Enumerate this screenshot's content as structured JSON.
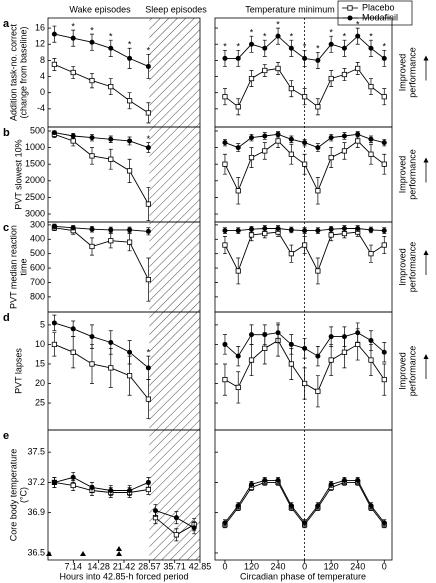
{
  "figure": {
    "headers": {
      "wake": "Wake episodes",
      "sleep": "Sleep episodes",
      "temp_min": "Temperature minimum"
    },
    "legend": [
      "Placebo",
      "Modafinil"
    ],
    "x_axes": {
      "hours": {
        "label": "Hours into 42.85-h forced period",
        "xlim": [
          0,
          42.85
        ],
        "xticks": [
          7.14,
          14.28,
          21.42,
          28.57,
          35.71,
          42.85
        ],
        "sleep_span": [
          28.57,
          42.85
        ]
      },
      "phase": {
        "label": "Circadian phase of temperature",
        "xlim": [
          -45,
          755
        ],
        "xticks": [
          0,
          120,
          240,
          {
            "value": 360,
            "label": "0"
          },
          {
            "value": 480,
            "label": "120"
          },
          {
            "value": 600,
            "label": "240"
          },
          {
            "value": 720,
            "label": "0"
          }
        ],
        "temp_min_x": 360
      }
    }
  },
  "chart_data": [
    {
      "type": "line",
      "label": "a",
      "ylabel": [
        "Addition task-no. correct",
        "(change from baseline)"
      ],
      "annotation": [
        "Improved",
        "performance"
      ],
      "ylim": [
        -8.5,
        18.5
      ],
      "yticks": [
        -4,
        0,
        4,
        8,
        12,
        16
      ],
      "y_inverted": false,
      "sections": {
        "wake": {
          "x": [
            1.8,
            7.1,
            12.4,
            17.7,
            23,
            28.3
          ],
          "sig": [
            null,
            "*",
            "*",
            "*",
            "*",
            "*"
          ],
          "series": [
            {
              "values": [
                7,
                5,
                3,
                1.5,
                -2,
                -5
              ],
              "err": [
                1.5,
                1.5,
                1.8,
                2,
                2,
                2.5
              ]
            },
            {
              "values": [
                14.5,
                13.5,
                12.5,
                11,
                8.5,
                6.5
              ],
              "err": [
                2,
                2,
                2,
                2,
                2.5,
                3
              ]
            }
          ]
        },
        "circadian": {
          "x": [
            0,
            60,
            120,
            180,
            240,
            300,
            360,
            420,
            480,
            540,
            600,
            660,
            720
          ],
          "sig": [
            "*",
            "*",
            "*",
            "*",
            "*",
            "*",
            "*",
            "*",
            "*",
            "*",
            "*",
            "*",
            "*"
          ],
          "series": [
            {
              "values": [
                -1,
                -3.5,
                3.5,
                5.5,
                6,
                1,
                -1,
                -3.5,
                3.5,
                4.5,
                6,
                1.5,
                -1
              ],
              "err": [
                2,
                2,
                2,
                1.5,
                1.5,
                2,
                2,
                2,
                2,
                1.5,
                1.5,
                2,
                2
              ]
            },
            {
              "values": [
                8.5,
                8.5,
                12,
                11,
                14,
                11,
                8.5,
                8,
                12,
                11,
                14,
                11,
                8.5
              ],
              "err": [
                2,
                2,
                2,
                2,
                2,
                2,
                2,
                2,
                2,
                2,
                2,
                2,
                2
              ]
            }
          ]
        }
      }
    },
    {
      "type": "line",
      "label": "b",
      "ylabel": [
        "PVT slowest 10%"
      ],
      "annotation": [
        "Improved",
        "performance"
      ],
      "ylim": [
        380,
        3240
      ],
      "yticks": [
        500,
        1000,
        1500,
        2000,
        2500,
        3000
      ],
      "y_inverted": true,
      "sections": {
        "wake": {
          "x": [
            1.8,
            7.1,
            12.4,
            17.7,
            23,
            28.3
          ],
          "sig": [
            null,
            null,
            null,
            null,
            null,
            "*"
          ],
          "series": [
            {
              "values": [
                600,
                800,
                1250,
                1350,
                1700,
                2700
              ],
              "err": [
                100,
                150,
                250,
                300,
                350,
                500
              ]
            },
            {
              "values": [
                550,
                650,
                700,
                750,
                800,
                1000
              ],
              "err": [
                50,
                80,
                100,
                100,
                120,
                150
              ]
            }
          ]
        },
        "circadian": {
          "x": [
            0,
            60,
            120,
            180,
            240,
            300,
            360,
            420,
            480,
            540,
            600,
            660,
            720
          ],
          "series": [
            {
              "values": [
                1500,
                2300,
                1300,
                1100,
                800,
                1200,
                1500,
                2300,
                1300,
                1100,
                800,
                1200,
                1500
              ],
              "err": [
                300,
                400,
                300,
                250,
                200,
                300,
                300,
                400,
                300,
                250,
                200,
                300,
                300
              ]
            },
            {
              "values": [
                850,
                1000,
                700,
                650,
                600,
                750,
                850,
                1000,
                700,
                650,
                600,
                750,
                850
              ],
              "err": [
                100,
                120,
                100,
                100,
                80,
                100,
                100,
                120,
                100,
                100,
                80,
                100,
                100
              ]
            }
          ]
        }
      }
    },
    {
      "type": "line",
      "label": "c",
      "ylabel": [
        "PVT median reaction",
        "time"
      ],
      "annotation": [
        "Improved",
        "performance"
      ],
      "ylim": [
        280,
        905
      ],
      "yticks": [
        300,
        400,
        500,
        600,
        700,
        800
      ],
      "y_inverted": true,
      "sections": {
        "wake": {
          "x": [
            1.8,
            7.1,
            12.4,
            17.7,
            23,
            28.3
          ],
          "series": [
            {
              "values": [
                320,
                340,
                450,
                410,
                420,
                680
              ],
              "err": [
                20,
                25,
                60,
                50,
                60,
                150
              ]
            },
            {
              "values": [
                310,
                320,
                330,
                335,
                335,
                345
              ],
              "err": [
                15,
                15,
                20,
                20,
                20,
                25
              ]
            }
          ]
        },
        "circadian": {
          "x": [
            0,
            60,
            120,
            180,
            240,
            300,
            360,
            420,
            480,
            540,
            600,
            660,
            720
          ],
          "series": [
            {
              "values": [
                440,
                620,
                370,
                360,
                350,
                500,
                440,
                620,
                370,
                360,
                350,
                500,
                440
              ],
              "err": [
                60,
                90,
                40,
                30,
                30,
                60,
                60,
                90,
                40,
                30,
                30,
                60,
                60
              ]
            },
            {
              "values": [
                340,
                340,
                330,
                325,
                325,
                335,
                340,
                340,
                330,
                325,
                325,
                335,
                340
              ],
              "err": [
                20,
                20,
                20,
                20,
                20,
                20,
                20,
                20,
                20,
                20,
                20,
                20,
                20
              ]
            }
          ]
        }
      }
    },
    {
      "type": "line",
      "label": "d",
      "ylabel": [
        "PVT lapses"
      ],
      "annotation": [
        "Improved",
        "performance"
      ],
      "ylim": [
        1.7,
        31.9
      ],
      "yticks": [
        5,
        10,
        15,
        20,
        25
      ],
      "y_inverted": true,
      "sections": {
        "wake": {
          "x": [
            1.8,
            7.1,
            12.4,
            17.7,
            23,
            28.3
          ],
          "sig": [
            null,
            null,
            null,
            null,
            null,
            "*"
          ],
          "series": [
            {
              "values": [
                10,
                12,
                15,
                16,
                18,
                24
              ],
              "err": [
                3,
                4,
                5,
                5,
                5,
                5
              ]
            },
            {
              "values": [
                4.5,
                6,
                8,
                9.5,
                12,
                16
              ],
              "err": [
                2,
                2,
                3,
                3,
                3,
                3
              ]
            }
          ]
        },
        "circadian": {
          "x": [
            0,
            60,
            120,
            180,
            240,
            300,
            360,
            420,
            480,
            540,
            600,
            660,
            720
          ],
          "series": [
            {
              "values": [
                19,
                21,
                14,
                11,
                9,
                15,
                20,
                22,
                14,
                12,
                10,
                14,
                19
              ],
              "err": [
                4,
                4,
                4,
                4,
                4,
                4,
                4,
                4,
                4,
                4,
                4,
                4,
                4
              ]
            },
            {
              "values": [
                10,
                13,
                7.5,
                7.5,
                7,
                10,
                11,
                13,
                8,
                8,
                7,
                9,
                12
              ],
              "err": [
                2.5,
                2.5,
                2.5,
                2.5,
                2.5,
                2.5,
                2.5,
                2.5,
                2.5,
                2.5,
                2.5,
                2.5,
                2.5
              ]
            }
          ]
        }
      }
    },
    {
      "type": "line",
      "label": "e",
      "ylabel": [
        "Core body temperature",
        "(°C)"
      ],
      "ylim": [
        36.43,
        37.72
      ],
      "yticks": [
        36.5,
        36.9,
        37.2,
        37.5
      ],
      "y_inverted": false,
      "sections": {
        "wake": {
          "x": [
            1.8,
            7.1,
            12.4,
            17.7,
            23,
            28.3
          ],
          "series": [
            {
              "values": [
                37.2,
                37.17,
                37.12,
                37.1,
                37.1,
                37.13
              ],
              "err": [
                0.05,
                0.05,
                0.05,
                0.05,
                0.05,
                0.05
              ]
            },
            {
              "values": [
                37.2,
                37.25,
                37.15,
                37.12,
                37.12,
                37.2
              ],
              "err": [
                0.05,
                0.05,
                0.05,
                0.05,
                0.05,
                0.05
              ]
            }
          ]
        },
        "sleep": {
          "x": [
            30.3,
            36.2,
            41.2
          ],
          "series": [
            {
              "values": [
                36.85,
                36.68,
                36.78
              ],
              "err": [
                0.06,
                0.06,
                0.06
              ]
            },
            {
              "values": [
                36.92,
                36.85,
                36.75
              ],
              "err": [
                0.06,
                0.06,
                0.06
              ]
            }
          ]
        },
        "circadian": {
          "x": [
            0,
            60,
            120,
            180,
            240,
            300,
            360,
            420,
            480,
            540,
            600,
            660,
            720
          ],
          "series": [
            {
              "values": [
                36.78,
                36.95,
                37.15,
                37.2,
                37.2,
                36.95,
                36.78,
                36.95,
                37.15,
                37.2,
                37.2,
                36.95,
                36.78
              ],
              "err": [
                0.03,
                0.03,
                0.03,
                0.03,
                0.03,
                0.03,
                0.03,
                0.03,
                0.03,
                0.03,
                0.03,
                0.03,
                0.03
              ]
            },
            {
              "values": [
                36.8,
                36.97,
                37.18,
                37.22,
                37.22,
                36.97,
                36.8,
                36.97,
                37.18,
                37.22,
                37.22,
                36.97,
                36.8
              ],
              "err": [
                0.03,
                0.03,
                0.03,
                0.03,
                0.03,
                0.03,
                0.03,
                0.03,
                0.03,
                0.03,
                0.03,
                0.03,
                0.03
              ]
            }
          ]
        }
      }
    }
  ]
}
